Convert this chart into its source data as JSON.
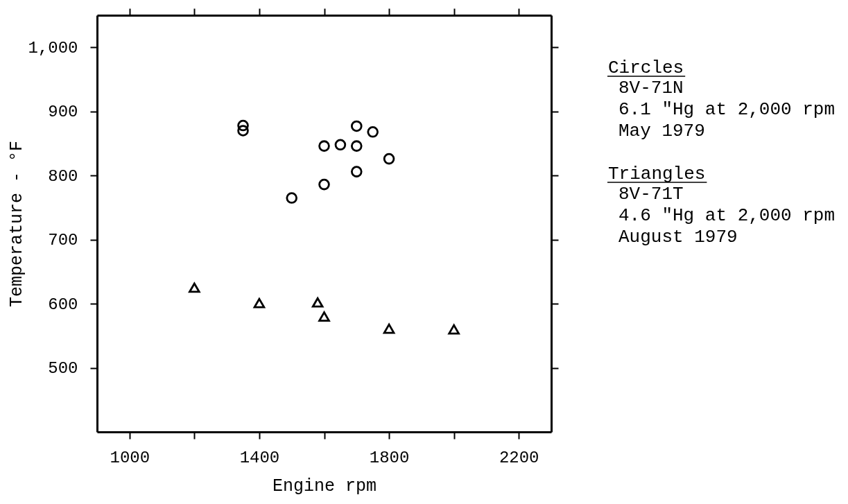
{
  "chart_data": {
    "type": "scatter",
    "xlabel": "Engine rpm",
    "ylabel": "Temperature - °F",
    "xlim": [
      900,
      2300
    ],
    "ylim": [
      400,
      1050
    ],
    "xticks": [
      1000,
      {
        "value": 1200,
        "label": null
      },
      1400,
      {
        "value": 1600,
        "label": null
      },
      1800,
      {
        "value": 2000,
        "label": null
      },
      2200
    ],
    "yticks": [
      500,
      600,
      700,
      800,
      900,
      {
        "value": 1000,
        "label": "1,000"
      }
    ],
    "grid": false,
    "legend": "right",
    "series": [
      {
        "name": "Circles",
        "color": "#000000",
        "marker": "circle",
        "x": [
          1350,
          1350,
          1500,
          1600,
          1600,
          1650,
          1700,
          1700,
          1700,
          1750,
          1800
        ],
        "values": [
          878,
          870,
          765,
          846,
          786,
          848,
          877,
          846,
          806,
          868,
          826
        ]
      },
      {
        "name": "Triangles",
        "color": "#000000",
        "marker": "triangle",
        "x": [
          1200,
          1400,
          1580,
          1600,
          1800,
          2000
        ],
        "values": [
          625,
          601,
          602,
          580,
          561,
          560
        ]
      }
    ],
    "annotations": [
      "8V-71N",
      "6.1 \"Hg at 2,000 rpm",
      "May 1979",
      "8V-71T",
      "4.6 \"Hg at 2,000 rpm",
      "August 1979"
    ]
  }
}
